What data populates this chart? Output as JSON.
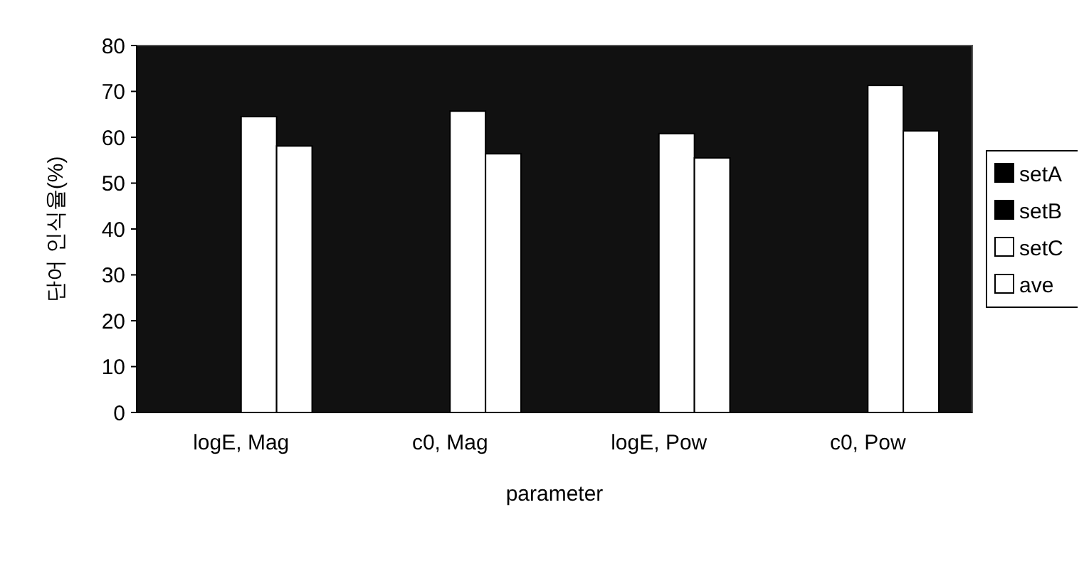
{
  "chart_data": {
    "type": "bar",
    "xlabel": "parameter",
    "ylabel": "단어 인식율(%)",
    "categories": [
      "logE, Mag",
      "c0, Mag",
      "logE, Pow",
      "c0, Pow"
    ],
    "ylim": [
      0,
      80
    ],
    "yticks": [
      0,
      10,
      20,
      30,
      40,
      50,
      60,
      70,
      80
    ],
    "legend": "right",
    "grid": false,
    "series": [
      {
        "name": "setA",
        "color": "#000000",
        "values": [
          null,
          null,
          null,
          null
        ]
      },
      {
        "name": "setB",
        "color": "#000000",
        "values": [
          null,
          null,
          null,
          null
        ]
      },
      {
        "name": "setC",
        "color": "#ffffff",
        "values": [
          64.5,
          65.7,
          60.8,
          71.3
        ]
      },
      {
        "name": "ave",
        "color": "#ffffff",
        "values": [
          58.1,
          56.4,
          55.5,
          61.4
        ]
      }
    ]
  }
}
